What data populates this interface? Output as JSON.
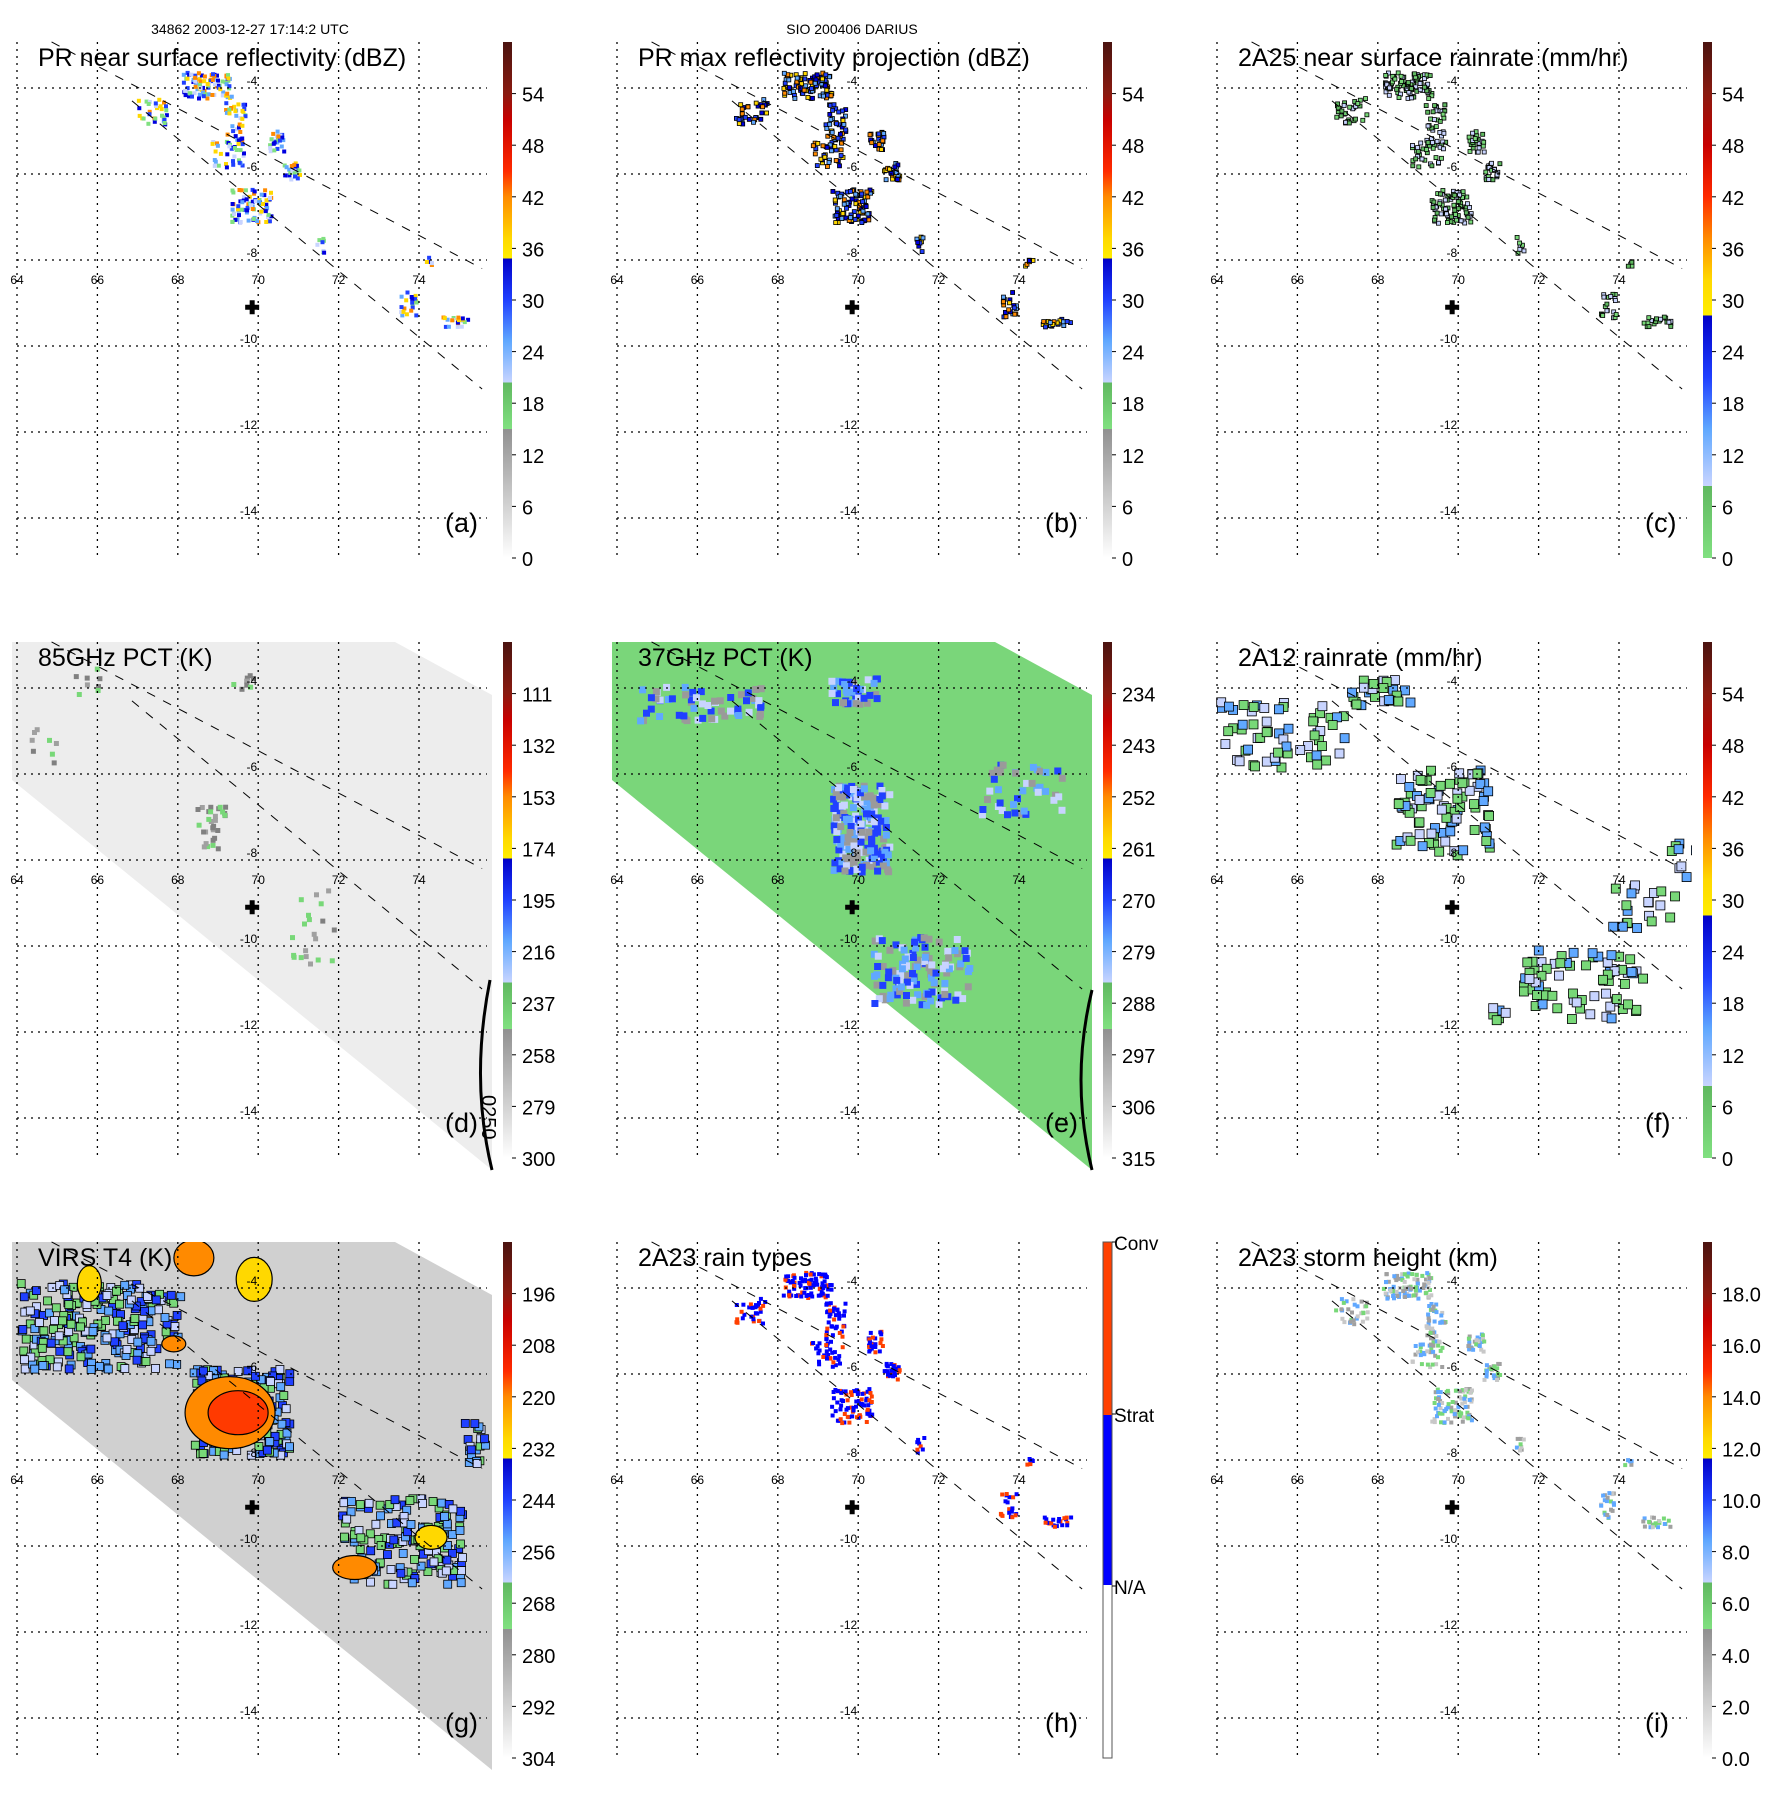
{
  "header": {
    "orbit_time": "34862 2003-12-27 17:14:2 UTC",
    "storm": "SIO 200406 DARIUS"
  },
  "axes": {
    "lon_labels": [
      "64",
      "66",
      "68",
      "70",
      "72",
      "74"
    ],
    "lat_labels": [
      "-4",
      "-6",
      "-8",
      "-10",
      "-12",
      "-14"
    ]
  },
  "panels": [
    {
      "id": "a",
      "title": "PR near surface reflectivity (dBZ)",
      "label": "(a)",
      "ticks": [
        "54",
        "48",
        "42",
        "36",
        "30",
        "24",
        "18",
        "12",
        "6",
        "0"
      ]
    },
    {
      "id": "b",
      "title": "PR max reflectivity projection (dBZ)",
      "label": "(b)",
      "ticks": [
        "54",
        "48",
        "42",
        "36",
        "30",
        "24",
        "18",
        "12",
        "6",
        "0"
      ]
    },
    {
      "id": "c",
      "title": "2A25 near surface rainrate (mm/hr)",
      "label": "(c)",
      "ticks": [
        "54",
        "48",
        "42",
        "36",
        "30",
        "24",
        "18",
        "12",
        "6",
        "0"
      ]
    },
    {
      "id": "d",
      "title": "85GHz PCT (K)",
      "label": "(d)",
      "ticks": [
        "111",
        "132",
        "153",
        "174",
        "195",
        "216",
        "237",
        "258",
        "279",
        "300"
      ],
      "annotation": "0250"
    },
    {
      "id": "e",
      "title": "37GHz PCT (K)",
      "label": "(e)",
      "ticks": [
        "234",
        "243",
        "252",
        "261",
        "270",
        "279",
        "288",
        "297",
        "306",
        "315"
      ]
    },
    {
      "id": "f",
      "title": "2A12 rainrate (mm/hr)",
      "label": "(f)",
      "ticks": [
        "54",
        "48",
        "42",
        "36",
        "30",
        "24",
        "18",
        "12",
        "6",
        "0"
      ]
    },
    {
      "id": "g",
      "title": "VIRS T4 (K)",
      "label": "(g)",
      "ticks": [
        "196",
        "208",
        "220",
        "232",
        "244",
        "256",
        "268",
        "280",
        "292",
        "304"
      ]
    },
    {
      "id": "h",
      "title": "2A23 rain types",
      "label": "(h)",
      "ticks": [
        "Conv",
        "Strat",
        "N/A"
      ]
    },
    {
      "id": "i",
      "title": "2A23 storm height (km)",
      "label": "(i)",
      "ticks": [
        "18.0",
        "16.0",
        "14.0",
        "12.0",
        "10.0",
        "8.0",
        "6.0",
        "4.0",
        "2.0",
        "0.0"
      ]
    }
  ],
  "colors": {
    "convective": "#ff4000",
    "stratiform": "#0000ff",
    "rain_green": "#78d878",
    "background_grey": "#e4e4e4"
  }
}
